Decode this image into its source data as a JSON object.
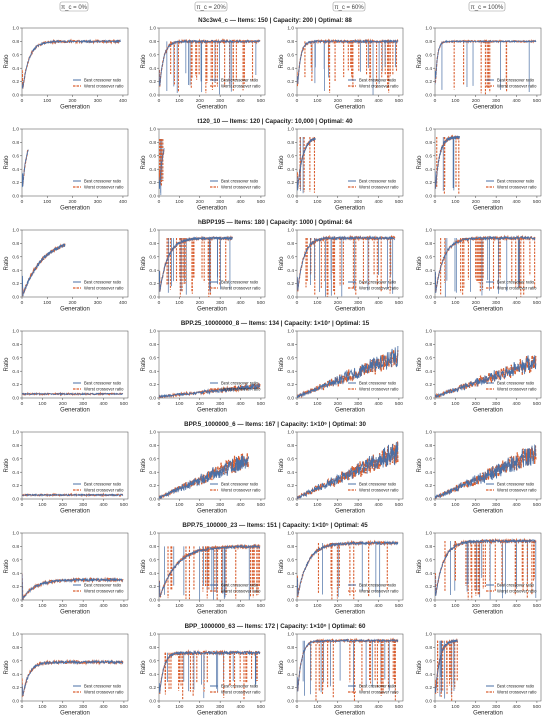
{
  "column_tags": [
    "π_c = 0%",
    "π_c = 20%",
    "π_c = 60%",
    "π_c = 100%"
  ],
  "row_titles": [
    "N3c3w4_c — Items: 150 | Capacity: 200 | Optimal: 88",
    "t120_10 — Items: 120 | Capacity: 10,000 | Optimal: 40",
    "hBPP195 — Items: 180 | Capacity: 1000 | Optimal: 64",
    "BPP.25_10000000_8 — Items: 134 | Capacity: 1×10⁷ | Optimal: 15",
    "BPP.5_1000000_6 — Items: 167 | Capacity: 1×10⁶ | Optimal: 30",
    "BPP.75_100000_23 — Items: 151 | Capacity: 1×10⁵ | Optimal: 45",
    "BPP_1000000_63 — Items: 172 | Capacity: 1×10⁶ | Optimal: 60"
  ],
  "colors": {
    "best": "#4a6fa5",
    "worst": "#d95f30"
  },
  "chart_data": {
    "type": "line",
    "xlabel": "Generation",
    "ylabel": "Ratio",
    "ylim": [
      0,
      1.0
    ],
    "yticks": [
      0.0,
      0.2,
      0.4,
      0.6,
      0.8,
      1.0
    ],
    "legend": [
      "Best crossover ratio",
      "Worst crossover ratio"
    ],
    "legend_position": "bottom-right",
    "series_names": [
      "Best crossover ratio",
      "Worst crossover ratio"
    ],
    "panels": [
      {
        "row": 0,
        "col": 0,
        "xticks": [
          0,
          100,
          200,
          300,
          400
        ],
        "xmax": 420,
        "gens": 390,
        "level": 0.8,
        "rise": 25,
        "noise": 0.03,
        "mode": "smooth"
      },
      {
        "row": 0,
        "col": 1,
        "xticks": [
          0,
          100,
          200,
          300,
          400,
          500
        ],
        "xmax": 520,
        "gens": 495,
        "level": 0.8,
        "rise": 20,
        "noise": 0.03,
        "mode": "dense",
        "drop": 0.55
      },
      {
        "row": 0,
        "col": 2,
        "xticks": [
          0,
          100,
          200,
          300,
          400,
          500
        ],
        "xmax": 520,
        "gens": 495,
        "level": 0.8,
        "rise": 15,
        "noise": 0.03,
        "mode": "dense",
        "drop": 0.7
      },
      {
        "row": 0,
        "col": 3,
        "xticks": [
          0,
          100,
          200,
          300,
          400,
          500
        ],
        "xmax": 520,
        "gens": 495,
        "level": 0.8,
        "rise": 10,
        "noise": 0.02,
        "mode": "spikes",
        "drop": 0.25
      },
      {
        "row": 1,
        "col": 0,
        "xticks": [
          0,
          100,
          200,
          300,
          400
        ],
        "xmax": 420,
        "gens": 25,
        "level": 0.85,
        "rise": 15,
        "noise": 0.05,
        "mode": "smooth"
      },
      {
        "row": 1,
        "col": 1,
        "xticks": [
          0,
          100,
          200,
          300,
          400,
          500
        ],
        "xmax": 520,
        "gens": 25,
        "level": 0.85,
        "rise": 15,
        "noise": 0.06,
        "mode": "dense",
        "drop": 0.5
      },
      {
        "row": 1,
        "col": 2,
        "xticks": [
          0,
          100,
          200,
          300,
          400,
          500
        ],
        "xmax": 520,
        "gens": 90,
        "level": 0.88,
        "rise": 25,
        "noise": 0.05,
        "mode": "spikes",
        "drop": 0.2
      },
      {
        "row": 1,
        "col": 3,
        "xticks": [
          0,
          100,
          200,
          300,
          400,
          500
        ],
        "xmax": 520,
        "gens": 120,
        "level": 0.88,
        "rise": 20,
        "noise": 0.05,
        "mode": "spikes",
        "drop": 0.25
      },
      {
        "row": 2,
        "col": 0,
        "xticks": [
          0,
          100,
          200,
          300,
          400
        ],
        "xmax": 420,
        "gens": 170,
        "level": 0.88,
        "rise": 80,
        "noise": 0.05,
        "mode": "smooth"
      },
      {
        "row": 2,
        "col": 1,
        "xticks": [
          0,
          100,
          200,
          300,
          400,
          500
        ],
        "xmax": 520,
        "gens": 360,
        "level": 0.88,
        "rise": 40,
        "noise": 0.04,
        "mode": "dense",
        "drop": 0.5
      },
      {
        "row": 2,
        "col": 2,
        "xticks": [
          0,
          100,
          200,
          300,
          400,
          500
        ],
        "xmax": 520,
        "gens": 480,
        "level": 0.88,
        "rise": 30,
        "noise": 0.04,
        "mode": "dense",
        "drop": 0.6
      },
      {
        "row": 2,
        "col": 3,
        "xticks": [
          0,
          100,
          200,
          300,
          400,
          500
        ],
        "xmax": 520,
        "gens": 490,
        "level": 0.88,
        "rise": 40,
        "noise": 0.04,
        "mode": "dense",
        "drop": 0.55
      },
      {
        "row": 3,
        "col": 0,
        "xticks": [
          0,
          100,
          200,
          300,
          400,
          500
        ],
        "xmax": 520,
        "gens": 495,
        "level": 0.06,
        "rise": 5,
        "noise": 0.02,
        "mode": "flat"
      },
      {
        "row": 3,
        "col": 1,
        "xticks": [
          0,
          100,
          200,
          300,
          400,
          500
        ],
        "xmax": 520,
        "gens": 495,
        "level": 0.12,
        "rise": 5,
        "noise": 0.03,
        "mode": "climb",
        "final": 0.2
      },
      {
        "row": 3,
        "col": 2,
        "xticks": [
          0,
          100,
          200,
          300,
          400,
          500
        ],
        "xmax": 520,
        "gens": 495,
        "level": 0.72,
        "rise": 5,
        "noise": 0.05,
        "mode": "climb",
        "final": 0.75
      },
      {
        "row": 3,
        "col": 3,
        "xticks": [
          0,
          100,
          200,
          300,
          400,
          500
        ],
        "xmax": 520,
        "gens": 495,
        "level": 0.62,
        "rise": 5,
        "noise": 0.05,
        "mode": "climb",
        "final": 0.65
      },
      {
        "row": 4,
        "col": 0,
        "xticks": [
          0,
          100,
          200,
          300,
          400,
          500
        ],
        "xmax": 520,
        "gens": 495,
        "level": 0.06,
        "rise": 5,
        "noise": 0.02,
        "mode": "flat"
      },
      {
        "row": 4,
        "col": 1,
        "xticks": [
          0,
          100,
          200,
          300,
          400,
          500
        ],
        "xmax": 520,
        "gens": 440,
        "level": 0.72,
        "rise": 5,
        "noise": 0.05,
        "mode": "climb",
        "final": 0.72
      },
      {
        "row": 4,
        "col": 2,
        "xticks": [
          0,
          100,
          200,
          300,
          400,
          500
        ],
        "xmax": 520,
        "gens": 495,
        "level": 0.85,
        "rise": 5,
        "noise": 0.05,
        "mode": "climb",
        "final": 0.85
      },
      {
        "row": 4,
        "col": 3,
        "xticks": [
          0,
          100,
          200,
          300,
          400,
          500
        ],
        "xmax": 520,
        "gens": 495,
        "level": 0.82,
        "rise": 5,
        "noise": 0.05,
        "mode": "climb",
        "final": 0.82
      },
      {
        "row": 5,
        "col": 0,
        "xticks": [
          0,
          100,
          200,
          300,
          400,
          500
        ],
        "xmax": 520,
        "gens": 495,
        "level": 0.3,
        "rise": 60,
        "noise": 0.04,
        "mode": "smooth"
      },
      {
        "row": 5,
        "col": 1,
        "xticks": [
          0,
          100,
          200,
          300,
          400,
          500
        ],
        "xmax": 520,
        "gens": 495,
        "level": 0.8,
        "rise": 80,
        "noise": 0.04,
        "mode": "dense",
        "drop": 0.4
      },
      {
        "row": 5,
        "col": 2,
        "xticks": [
          0,
          100,
          200,
          300,
          400,
          500
        ],
        "xmax": 520,
        "gens": 495,
        "level": 0.85,
        "rise": 50,
        "noise": 0.04,
        "mode": "spikes",
        "drop": 0.35
      },
      {
        "row": 5,
        "col": 3,
        "xticks": [
          0,
          100,
          200,
          300,
          400,
          500
        ],
        "xmax": 520,
        "gens": 495,
        "level": 0.88,
        "rise": 40,
        "noise": 0.04,
        "mode": "dense",
        "drop": 0.6
      },
      {
        "row": 6,
        "col": 0,
        "xticks": [
          0,
          100,
          200,
          300,
          400,
          500
        ],
        "xmax": 520,
        "gens": 495,
        "level": 0.58,
        "rise": 30,
        "noise": 0.04,
        "mode": "smooth"
      },
      {
        "row": 6,
        "col": 1,
        "xticks": [
          0,
          100,
          200,
          300,
          400,
          500
        ],
        "xmax": 520,
        "gens": 495,
        "level": 0.72,
        "rise": 20,
        "noise": 0.04,
        "mode": "dense",
        "drop": 0.55
      },
      {
        "row": 6,
        "col": 2,
        "xticks": [
          0,
          100,
          200,
          300,
          400,
          500
        ],
        "xmax": 520,
        "gens": 495,
        "level": 0.9,
        "rise": 20,
        "noise": 0.03,
        "mode": "dense",
        "drop": 0.55
      },
      {
        "row": 6,
        "col": 3,
        "xticks": [
          0,
          100,
          200,
          300,
          400,
          500
        ],
        "xmax": 520,
        "gens": 110,
        "level": 0.9,
        "rise": 20,
        "noise": 0.04,
        "mode": "dense",
        "drop": 0.6
      }
    ]
  }
}
